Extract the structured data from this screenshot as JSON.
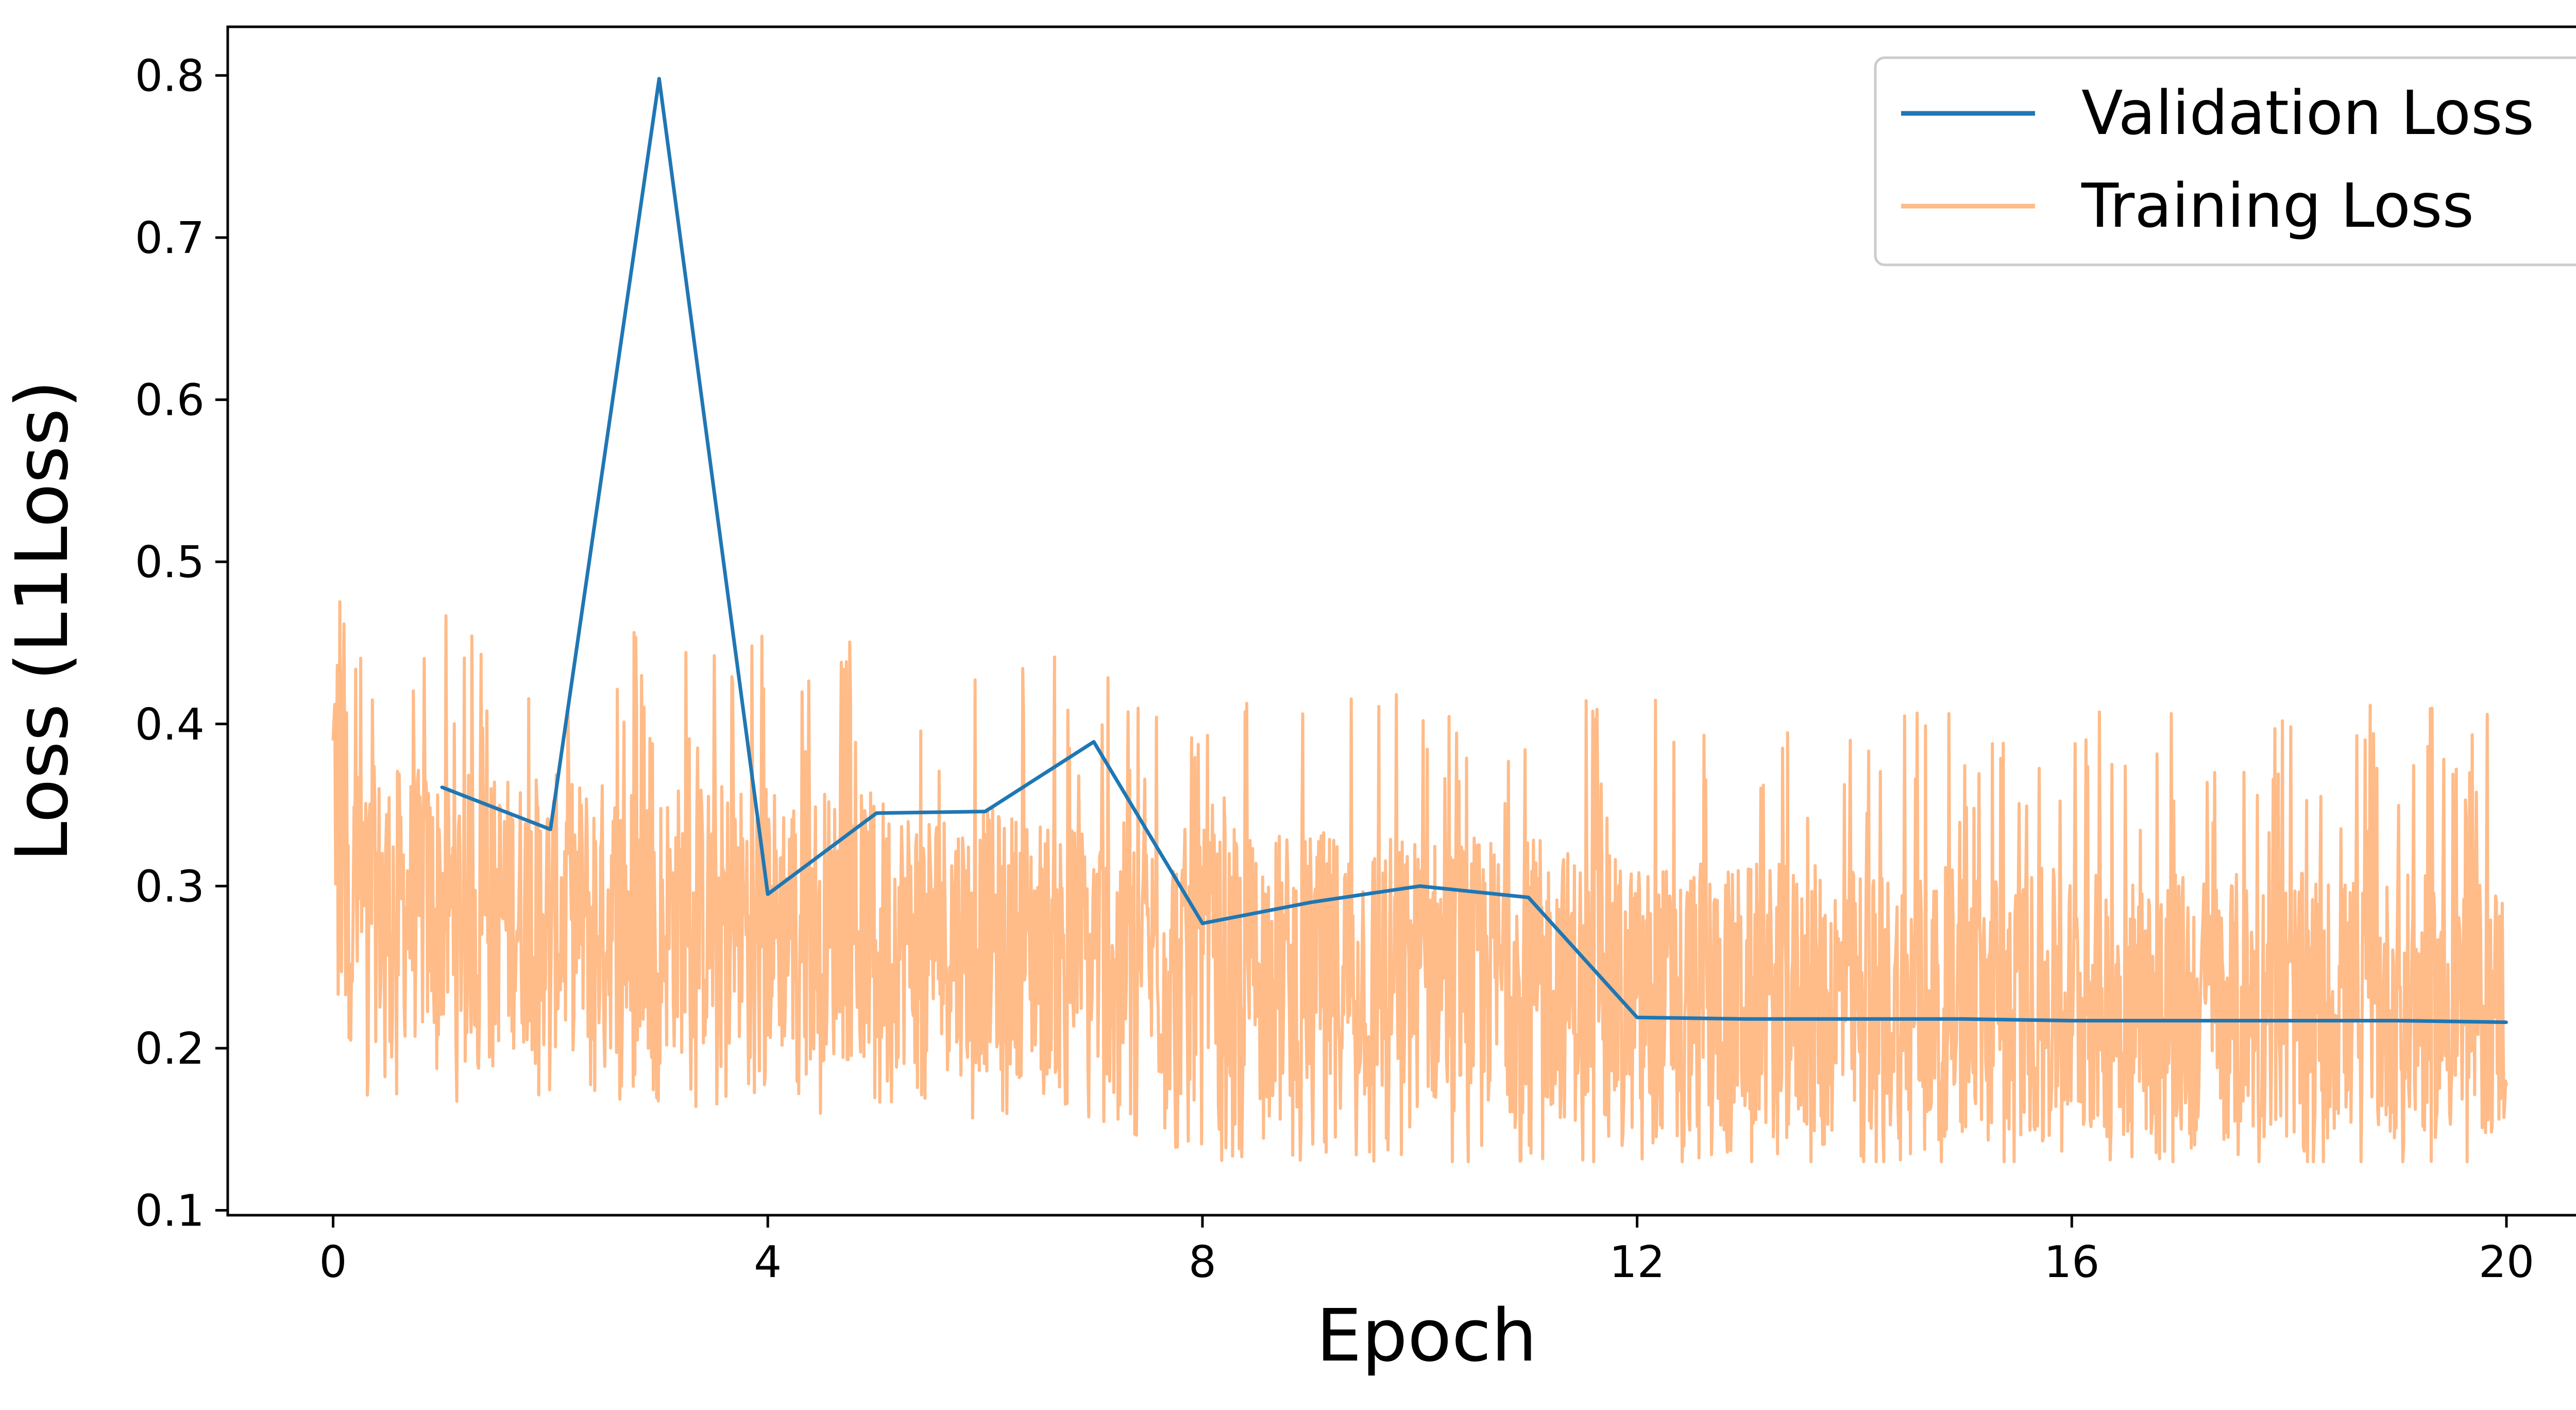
{
  "chart_data": {
    "type": "line",
    "title": "",
    "xlabel": "Epoch",
    "ylabel": "Loss (L1Loss)",
    "xlim": [
      -0.97,
      21.1
    ],
    "ylim": [
      0.097,
      0.83
    ],
    "xticks": [
      "0",
      "4",
      "8",
      "12",
      "16",
      "20"
    ],
    "xtick_values": [
      0,
      4,
      8,
      12,
      16,
      20
    ],
    "yticks": [
      "0.1",
      "0.2",
      "0.3",
      "0.4",
      "0.5",
      "0.6",
      "0.7",
      "0.8"
    ],
    "ytick_values": [
      0.1,
      0.2,
      0.3,
      0.4,
      0.5,
      0.6,
      0.7,
      0.8
    ],
    "grid": false,
    "legend_position": "top-right",
    "series": [
      {
        "name": "Validation Loss",
        "color": "#1f77b4",
        "x": [
          1,
          2,
          3,
          4,
          5,
          6,
          7,
          8,
          9,
          10,
          11,
          12,
          13,
          14,
          15,
          16,
          17,
          18,
          19,
          20
        ],
        "values": [
          0.361,
          0.335,
          0.798,
          0.295,
          0.345,
          0.346,
          0.389,
          0.277,
          0.29,
          0.3,
          0.293,
          0.219,
          0.218,
          0.218,
          0.218,
          0.217,
          0.217,
          0.217,
          0.217,
          0.216
        ]
      },
      {
        "name": "Training Loss",
        "color": "#ffbb88",
        "x_range": [
          0,
          20
        ],
        "trend": [
          [
            0,
            0.29
          ],
          [
            3,
            0.28
          ],
          [
            4,
            0.28
          ],
          [
            7,
            0.26
          ],
          [
            8,
            0.25
          ],
          [
            11,
            0.245
          ],
          [
            12,
            0.23
          ],
          [
            20,
            0.225
          ]
        ],
        "band_low": [
          [
            0,
            0.2
          ],
          [
            7,
            0.18
          ],
          [
            8,
            0.16
          ],
          [
            12,
            0.15
          ],
          [
            20,
            0.15
          ]
        ],
        "band_high": [
          [
            0,
            0.39
          ],
          [
            4,
            0.38
          ],
          [
            7,
            0.36
          ],
          [
            8,
            0.35
          ],
          [
            12,
            0.34
          ],
          [
            20,
            0.33
          ]
        ],
        "max_spike": 0.54,
        "min_value": 0.13
      }
    ]
  }
}
